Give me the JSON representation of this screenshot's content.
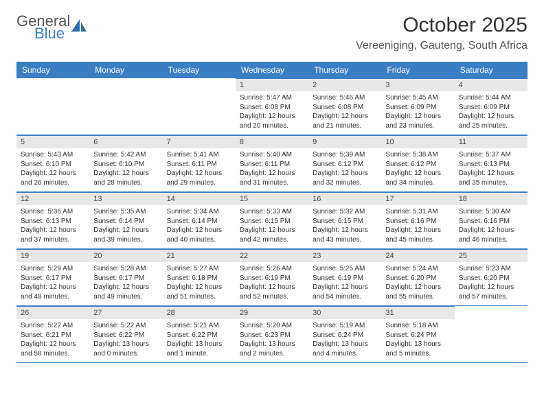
{
  "brand": {
    "line1": "General",
    "line2": "Blue"
  },
  "title": "October 2025",
  "location": "Vereeniging, Gauteng, South Africa",
  "accent_color": "#3a7fc4",
  "header_bg": "#e8e8e8",
  "weekdays": [
    "Sunday",
    "Monday",
    "Tuesday",
    "Wednesday",
    "Thursday",
    "Friday",
    "Saturday"
  ],
  "grid": [
    [
      null,
      null,
      null,
      {
        "n": "1",
        "sr": "5:47 AM",
        "ss": "6:08 PM",
        "d": "12 hours and 20 minutes."
      },
      {
        "n": "2",
        "sr": "5:46 AM",
        "ss": "6:08 PM",
        "d": "12 hours and 21 minutes."
      },
      {
        "n": "3",
        "sr": "5:45 AM",
        "ss": "6:09 PM",
        "d": "12 hours and 23 minutes."
      },
      {
        "n": "4",
        "sr": "5:44 AM",
        "ss": "6:09 PM",
        "d": "12 hours and 25 minutes."
      }
    ],
    [
      {
        "n": "5",
        "sr": "5:43 AM",
        "ss": "6:10 PM",
        "d": "12 hours and 26 minutes."
      },
      {
        "n": "6",
        "sr": "5:42 AM",
        "ss": "6:10 PM",
        "d": "12 hours and 28 minutes."
      },
      {
        "n": "7",
        "sr": "5:41 AM",
        "ss": "6:11 PM",
        "d": "12 hours and 29 minutes."
      },
      {
        "n": "8",
        "sr": "5:40 AM",
        "ss": "6:11 PM",
        "d": "12 hours and 31 minutes."
      },
      {
        "n": "9",
        "sr": "5:39 AM",
        "ss": "6:12 PM",
        "d": "12 hours and 32 minutes."
      },
      {
        "n": "10",
        "sr": "5:38 AM",
        "ss": "6:12 PM",
        "d": "12 hours and 34 minutes."
      },
      {
        "n": "11",
        "sr": "5:37 AM",
        "ss": "6:13 PM",
        "d": "12 hours and 35 minutes."
      }
    ],
    [
      {
        "n": "12",
        "sr": "5:36 AM",
        "ss": "6:13 PM",
        "d": "12 hours and 37 minutes."
      },
      {
        "n": "13",
        "sr": "5:35 AM",
        "ss": "6:14 PM",
        "d": "12 hours and 39 minutes."
      },
      {
        "n": "14",
        "sr": "5:34 AM",
        "ss": "6:14 PM",
        "d": "12 hours and 40 minutes."
      },
      {
        "n": "15",
        "sr": "5:33 AM",
        "ss": "6:15 PM",
        "d": "12 hours and 42 minutes."
      },
      {
        "n": "16",
        "sr": "5:32 AM",
        "ss": "6:15 PM",
        "d": "12 hours and 43 minutes."
      },
      {
        "n": "17",
        "sr": "5:31 AM",
        "ss": "6:16 PM",
        "d": "12 hours and 45 minutes."
      },
      {
        "n": "18",
        "sr": "5:30 AM",
        "ss": "6:16 PM",
        "d": "12 hours and 46 minutes."
      }
    ],
    [
      {
        "n": "19",
        "sr": "5:29 AM",
        "ss": "6:17 PM",
        "d": "12 hours and 48 minutes."
      },
      {
        "n": "20",
        "sr": "5:28 AM",
        "ss": "6:17 PM",
        "d": "12 hours and 49 minutes."
      },
      {
        "n": "21",
        "sr": "5:27 AM",
        "ss": "6:18 PM",
        "d": "12 hours and 51 minutes."
      },
      {
        "n": "22",
        "sr": "5:26 AM",
        "ss": "6:19 PM",
        "d": "12 hours and 52 minutes."
      },
      {
        "n": "23",
        "sr": "5:25 AM",
        "ss": "6:19 PM",
        "d": "12 hours and 54 minutes."
      },
      {
        "n": "24",
        "sr": "5:24 AM",
        "ss": "6:20 PM",
        "d": "12 hours and 55 minutes."
      },
      {
        "n": "25",
        "sr": "5:23 AM",
        "ss": "6:20 PM",
        "d": "12 hours and 57 minutes."
      }
    ],
    [
      {
        "n": "26",
        "sr": "5:22 AM",
        "ss": "6:21 PM",
        "d": "12 hours and 58 minutes."
      },
      {
        "n": "27",
        "sr": "5:22 AM",
        "ss": "6:22 PM",
        "d": "13 hours and 0 minutes."
      },
      {
        "n": "28",
        "sr": "5:21 AM",
        "ss": "6:22 PM",
        "d": "13 hours and 1 minute."
      },
      {
        "n": "29",
        "sr": "5:20 AM",
        "ss": "6:23 PM",
        "d": "13 hours and 2 minutes."
      },
      {
        "n": "30",
        "sr": "5:19 AM",
        "ss": "6:24 PM",
        "d": "13 hours and 4 minutes."
      },
      {
        "n": "31",
        "sr": "5:18 AM",
        "ss": "6:24 PM",
        "d": "13 hours and 5 minutes."
      },
      null
    ]
  ],
  "labels": {
    "sunrise": "Sunrise:",
    "sunset": "Sunset:",
    "daylight": "Daylight:"
  }
}
